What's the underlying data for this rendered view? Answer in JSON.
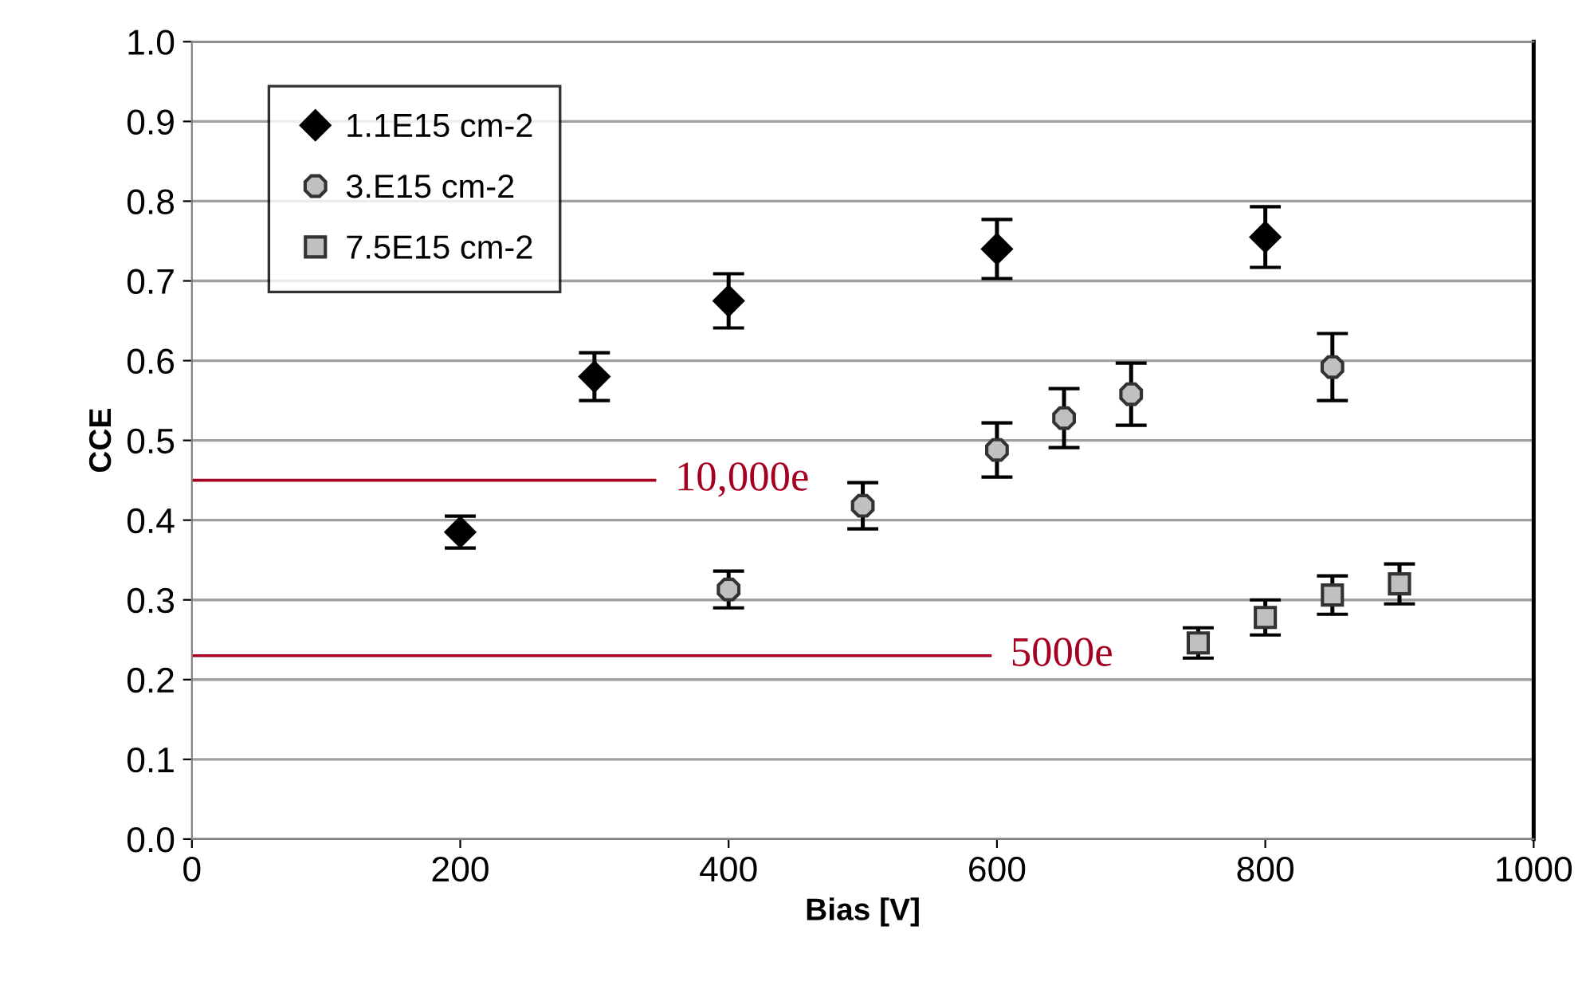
{
  "chart_data": {
    "type": "scatter",
    "xlabel": "Bias [V]",
    "ylabel": "CCE",
    "xlim": [
      0,
      1000
    ],
    "xticks": [
      0,
      200,
      400,
      600,
      800,
      1000
    ],
    "ylim": [
      0,
      1
    ],
    "yticks": [
      {
        "value": 0,
        "label": "0.0"
      },
      {
        "value": 0.1,
        "label": "0.1"
      },
      {
        "value": 0.2,
        "label": "0.2"
      },
      {
        "value": 0.3,
        "label": "0.3"
      },
      {
        "value": 0.4,
        "label": "0.4"
      },
      {
        "value": 0.5,
        "label": "0.5"
      },
      {
        "value": 0.6,
        "label": "0.6"
      },
      {
        "value": 0.7,
        "label": "0.7"
      },
      {
        "value": 0.8,
        "label": "0.8"
      },
      {
        "value": 0.9,
        "label": "0.9"
      },
      {
        "value": 1,
        "label": "1.0"
      }
    ],
    "grid": "y",
    "legend": "top left",
    "series": [
      {
        "name": "1.1E15 cm-2",
        "color": "#000000",
        "marker": "diamond",
        "x": [
          200,
          300,
          400,
          600,
          800
        ],
        "values": [
          0.385,
          0.58,
          0.675,
          0.74,
          0.755
        ],
        "errors": [
          0.02,
          0.03,
          0.034,
          0.037,
          0.038
        ]
      },
      {
        "name": "3.E15 cm-2",
        "color": "#c0c0c0",
        "marker": "circle",
        "x": [
          400,
          500,
          600,
          650,
          700,
          850
        ],
        "values": [
          0.313,
          0.418,
          0.488,
          0.528,
          0.558,
          0.592
        ],
        "errors": [
          0.023,
          0.029,
          0.034,
          0.037,
          0.039,
          0.042
        ]
      },
      {
        "name": "7.5E15 cm-2",
        "color": "#c0c0c0",
        "marker": "square",
        "x": [
          750,
          800,
          850,
          900
        ],
        "values": [
          0.246,
          0.278,
          0.306,
          0.32
        ],
        "errors": [
          0.019,
          0.022,
          0.024,
          0.025
        ]
      }
    ],
    "ref_lines": [
      {
        "axis": "y",
        "value": 0.45,
        "label": "10,000e",
        "color": "#a50021"
      },
      {
        "axis": "y",
        "value": 0.23,
        "label": "5000e",
        "color": "#a50021"
      }
    ]
  }
}
